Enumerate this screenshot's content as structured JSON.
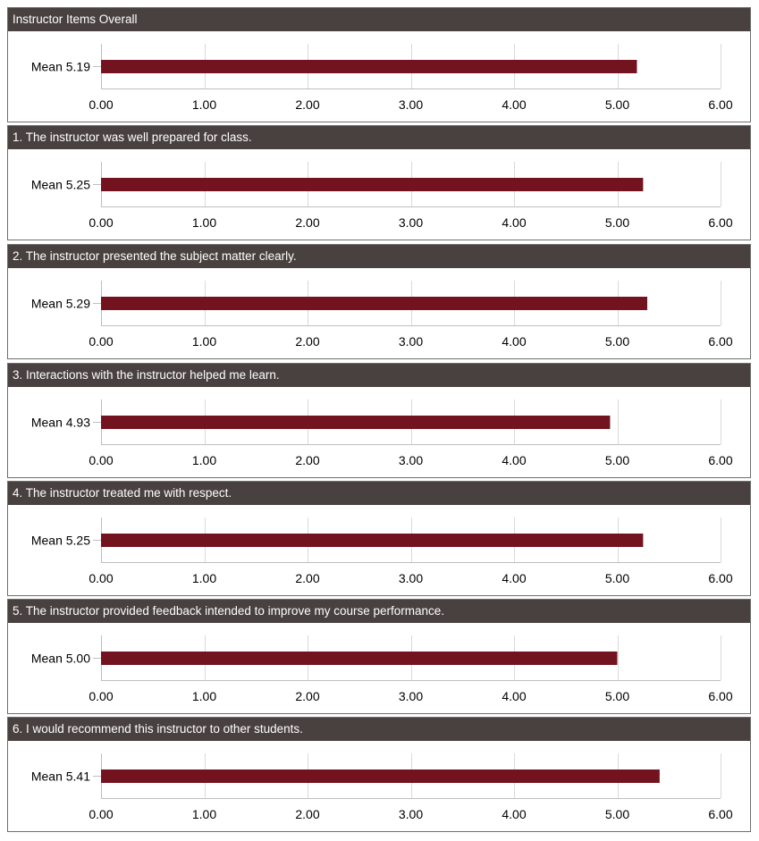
{
  "colors": {
    "header_bg": "#48413f",
    "header_text": "#ffffff",
    "bar": "#72131f",
    "grid": "#d9d9d9",
    "axis": "#bfbfbf"
  },
  "chart_data": [
    {
      "type": "bar",
      "orientation": "horizontal",
      "title": "Instructor Items Overall",
      "categories": [
        "Mean 5.19"
      ],
      "values": [
        5.19
      ],
      "xlim": [
        0,
        6
      ],
      "xticks": [
        "0.00",
        "1.00",
        "2.00",
        "3.00",
        "4.00",
        "5.00",
        "6.00"
      ],
      "grid": true
    },
    {
      "type": "bar",
      "orientation": "horizontal",
      "title": "1. The instructor was well prepared for class.",
      "categories": [
        "Mean 5.25"
      ],
      "values": [
        5.25
      ],
      "xlim": [
        0,
        6
      ],
      "xticks": [
        "0.00",
        "1.00",
        "2.00",
        "3.00",
        "4.00",
        "5.00",
        "6.00"
      ],
      "grid": true
    },
    {
      "type": "bar",
      "orientation": "horizontal",
      "title": "2. The instructor presented the subject matter clearly.",
      "categories": [
        "Mean 5.29"
      ],
      "values": [
        5.29
      ],
      "xlim": [
        0,
        6
      ],
      "xticks": [
        "0.00",
        "1.00",
        "2.00",
        "3.00",
        "4.00",
        "5.00",
        "6.00"
      ],
      "grid": true
    },
    {
      "type": "bar",
      "orientation": "horizontal",
      "title": "3. Interactions with the instructor helped me learn.",
      "categories": [
        "Mean 4.93"
      ],
      "values": [
        4.93
      ],
      "xlim": [
        0,
        6
      ],
      "xticks": [
        "0.00",
        "1.00",
        "2.00",
        "3.00",
        "4.00",
        "5.00",
        "6.00"
      ],
      "grid": true
    },
    {
      "type": "bar",
      "orientation": "horizontal",
      "title": "4. The instructor treated me with respect.",
      "categories": [
        "Mean 5.25"
      ],
      "values": [
        5.25
      ],
      "xlim": [
        0,
        6
      ],
      "xticks": [
        "0.00",
        "1.00",
        "2.00",
        "3.00",
        "4.00",
        "5.00",
        "6.00"
      ],
      "grid": true
    },
    {
      "type": "bar",
      "orientation": "horizontal",
      "title": "5. The instructor provided feedback intended to improve my course performance.",
      "categories": [
        "Mean 5.00"
      ],
      "values": [
        5.0
      ],
      "xlim": [
        0,
        6
      ],
      "xticks": [
        "0.00",
        "1.00",
        "2.00",
        "3.00",
        "4.00",
        "5.00",
        "6.00"
      ],
      "grid": true
    },
    {
      "type": "bar",
      "orientation": "horizontal",
      "title": "6. I would recommend this instructor to other students.",
      "categories": [
        "Mean 5.41"
      ],
      "values": [
        5.41
      ],
      "xlim": [
        0,
        6
      ],
      "xticks": [
        "0.00",
        "1.00",
        "2.00",
        "3.00",
        "4.00",
        "5.00",
        "6.00"
      ],
      "grid": true
    }
  ]
}
